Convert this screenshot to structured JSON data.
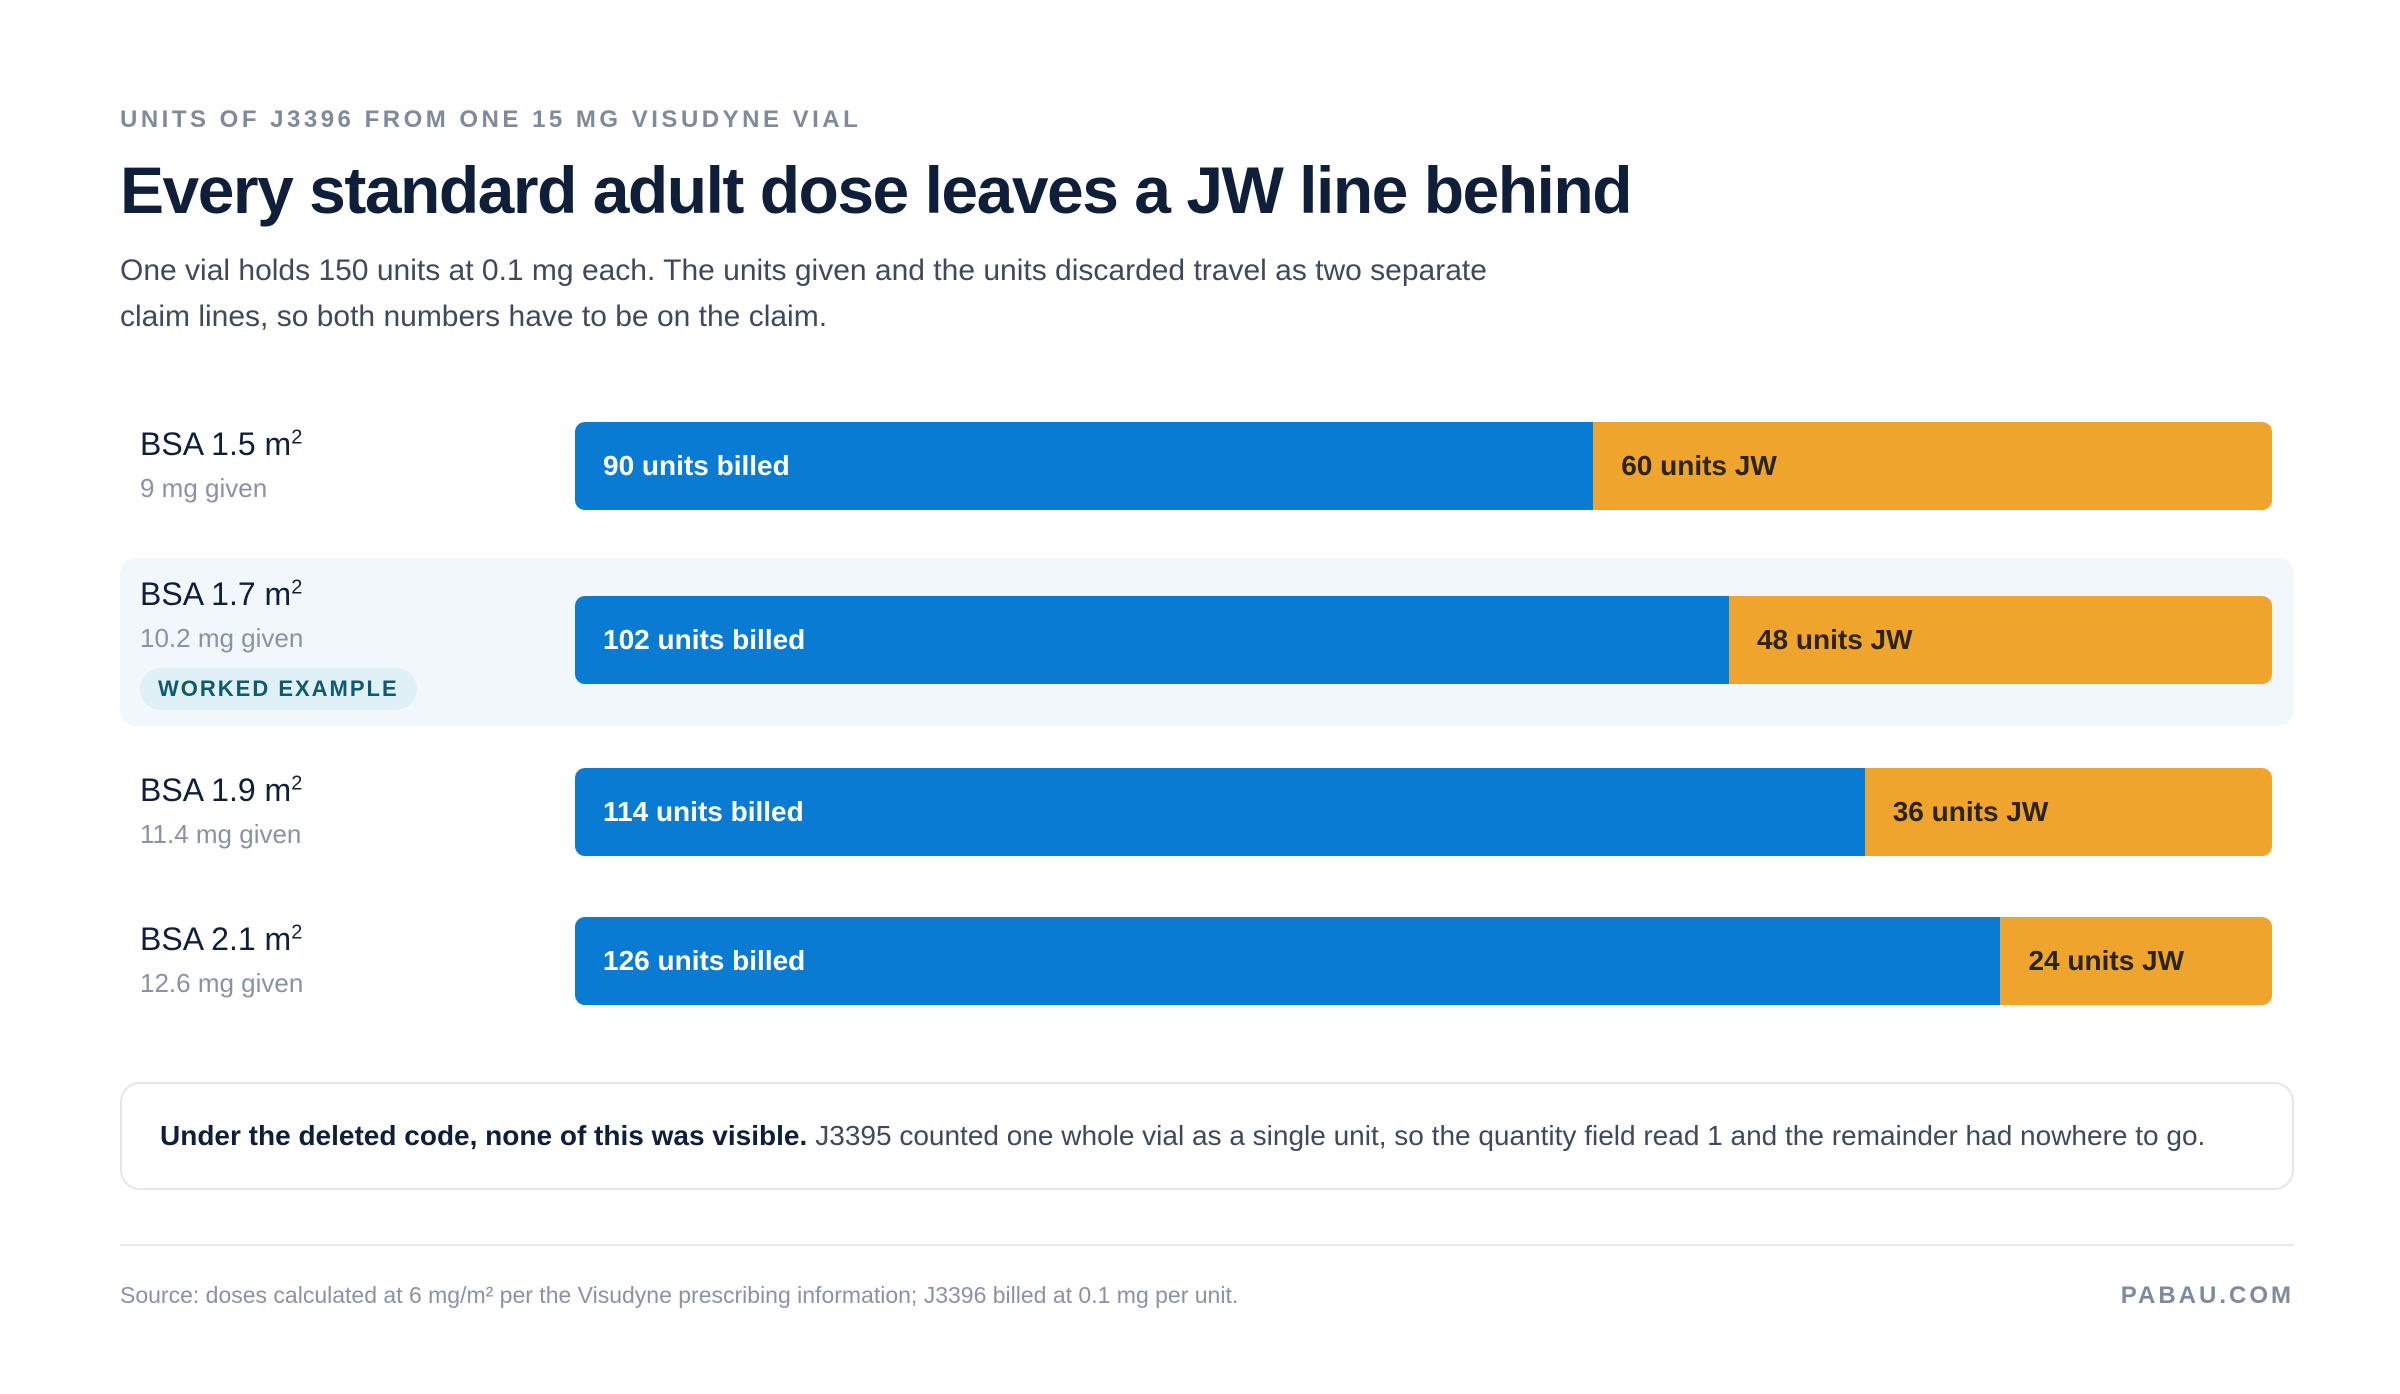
{
  "header": {
    "eyebrow": "UNITS OF J3396 FROM ONE 15 MG VISUDYNE VIAL",
    "title": "Every standard adult dose leaves a JW line behind",
    "subtitle": "One vial holds 150 units at 0.1 mg each. The units given and the units discarded travel as two separate claim lines, so both numbers have to be on the claim."
  },
  "chart_data": {
    "type": "bar",
    "orientation": "horizontal",
    "stacked": true,
    "categories": [
      "BSA 1.5 m²",
      "BSA 1.7 m²",
      "BSA 1.9 m²",
      "BSA 2.1 m²"
    ],
    "category_sublabels": [
      "9 mg given",
      "10.2 mg given",
      "11.4 mg given",
      "12.6 mg given"
    ],
    "highlight": {
      "index": 1,
      "label": "WORKED EXAMPLE"
    },
    "total": 150,
    "series": [
      {
        "key": "billed",
        "values": [
          90,
          102,
          114,
          126
        ],
        "labels": [
          "90 units billed",
          "102 units billed",
          "114 units billed",
          "126 units billed"
        ],
        "color": "#0a7bd3"
      },
      {
        "key": "jw",
        "values": [
          60,
          48,
          36,
          24
        ],
        "labels": [
          "60 units JW",
          "48 units JW",
          "36 units JW",
          "24 units JW"
        ],
        "color": "#efa42e"
      }
    ]
  },
  "note": {
    "bold": "Under the deleted code, none of this was visible.",
    "text": "J3395 counted one whole vial as a single unit, so the quantity field read 1 and the remainder had nowhere to go."
  },
  "footer": {
    "source": "Source: doses calculated at 6 mg/m² per the Visudyne prescribing information; J3396 billed at 0.1 mg per unit.",
    "brand": "PABAU.COM"
  }
}
